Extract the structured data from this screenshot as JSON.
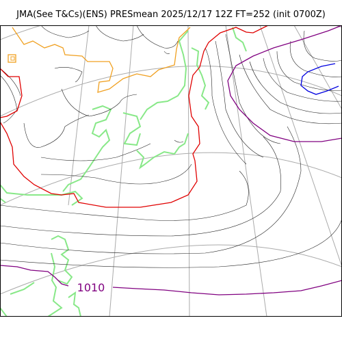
{
  "title": "JMA(See T&Cs)(ENS) PRESmean 2025/12/17 12Z FT=252 (init 0700Z)",
  "contour_labels": [
    {
      "text": "1010",
      "color": "#800080"
    }
  ],
  "colors": {
    "contour_1010": "#800080",
    "contour_1020": "#e00000",
    "contour_1000": "#0000e0",
    "isobar_minor": "#222222",
    "coastline": "#88e888",
    "border_orange": "#f0a020",
    "graticule": "#aaaaaa"
  },
  "icons": [
    "city-marker-icon"
  ]
}
